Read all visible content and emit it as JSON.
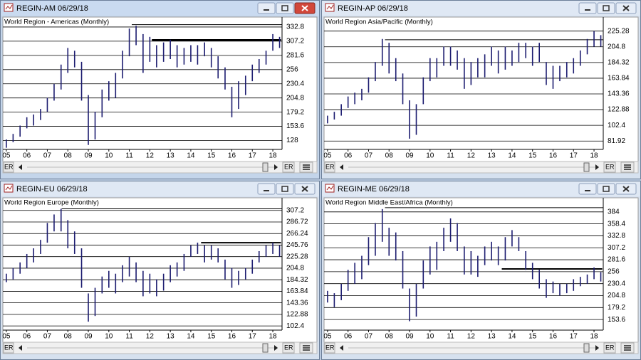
{
  "chart_data": [
    {
      "type": "hilo",
      "title": "REGIN-AM 06/29/18",
      "subtitle": "World Region - Americas (Monthly)",
      "scrollbar_label": "ER",
      "color": "#1c1c70",
      "active": true,
      "xlim": [
        2004.83,
        2018.45
      ],
      "ylim": [
        112,
        343
      ],
      "xticks": [
        {
          "value": 2005,
          "label": "05"
        },
        {
          "value": 2006,
          "label": "06"
        },
        {
          "value": 2007,
          "label": "07"
        },
        {
          "value": 2008,
          "label": "08"
        },
        {
          "value": 2009,
          "label": "09"
        },
        {
          "value": 2010,
          "label": "10"
        },
        {
          "value": 2011,
          "label": "11"
        },
        {
          "value": 2012,
          "label": "12"
        },
        {
          "value": 2013,
          "label": "13"
        },
        {
          "value": 2014,
          "label": "14"
        },
        {
          "value": 2015,
          "label": "15"
        },
        {
          "value": 2016,
          "label": "16"
        },
        {
          "value": 2017,
          "label": "17"
        },
        {
          "value": 2018,
          "label": "18"
        }
      ],
      "yticks": [
        128,
        153.6,
        179.2,
        204.8,
        230.4,
        256,
        281.6,
        307.2,
        332.8
      ],
      "levels": [
        {
          "value": 337,
          "from": 2010.9,
          "to": 2018.45,
          "width": 1
        },
        {
          "value": 309,
          "from": 2012.1,
          "to": 2018.4,
          "width": 3
        }
      ],
      "x": [
        2005,
        2005.33,
        2005.67,
        2006,
        2006.33,
        2006.67,
        2007,
        2007.33,
        2007.67,
        2008,
        2008.33,
        2008.67,
        2009,
        2009.33,
        2009.67,
        2010,
        2010.33,
        2010.67,
        2011,
        2011.33,
        2011.67,
        2012,
        2012.33,
        2012.67,
        2013,
        2013.33,
        2013.67,
        2014,
        2014.33,
        2014.67,
        2015,
        2015.33,
        2015.67,
        2016,
        2016.33,
        2016.67,
        2017,
        2017.33,
        2017.67,
        2018,
        2018.33
      ],
      "high": [
        130,
        140,
        155,
        170,
        175,
        185,
        205,
        230,
        265,
        295,
        290,
        270,
        210,
        180,
        220,
        235,
        250,
        290,
        330,
        335,
        320,
        315,
        300,
        305,
        310,
        300,
        295,
        300,
        300,
        305,
        295,
        280,
        260,
        225,
        235,
        245,
        265,
        275,
        290,
        320,
        315
      ],
      "low": [
        115,
        125,
        135,
        150,
        155,
        165,
        180,
        200,
        220,
        250,
        260,
        200,
        120,
        130,
        170,
        200,
        205,
        240,
        280,
        300,
        250,
        270,
        260,
        270,
        275,
        260,
        265,
        270,
        265,
        280,
        260,
        240,
        220,
        170,
        185,
        210,
        235,
        250,
        265,
        290,
        295
      ]
    },
    {
      "type": "hilo",
      "title": "REGIN-AP 06/29/18",
      "subtitle": "World Region Asia/Pacific (Monthly)",
      "scrollbar_label": "ER",
      "color": "#1c1c70",
      "active": false,
      "xlim": [
        2004.83,
        2018.45
      ],
      "ylim": [
        71,
        238
      ],
      "xticks": [
        {
          "value": 2005,
          "label": "05"
        },
        {
          "value": 2006,
          "label": "06"
        },
        {
          "value": 2007,
          "label": "07"
        },
        {
          "value": 2008,
          "label": "08"
        },
        {
          "value": 2009,
          "label": "09"
        },
        {
          "value": 2010,
          "label": "10"
        },
        {
          "value": 2011,
          "label": "11"
        },
        {
          "value": 2012,
          "label": "12"
        },
        {
          "value": 2013,
          "label": "13"
        },
        {
          "value": 2014,
          "label": "14"
        },
        {
          "value": 2015,
          "label": "15"
        },
        {
          "value": 2016,
          "label": "16"
        },
        {
          "value": 2017,
          "label": "17"
        },
        {
          "value": 2018,
          "label": "18"
        }
      ],
      "yticks": [
        81.92,
        102.4,
        122.88,
        143.36,
        163.84,
        184.32,
        204.8,
        225.28
      ],
      "levels": [
        {
          "value": 214,
          "from": 2007.8,
          "to": 2018.45,
          "width": 1
        }
      ],
      "x": [
        2005,
        2005.33,
        2005.67,
        2006,
        2006.33,
        2006.67,
        2007,
        2007.33,
        2007.67,
        2008,
        2008.33,
        2008.67,
        2009,
        2009.33,
        2009.67,
        2010,
        2010.33,
        2010.67,
        2011,
        2011.33,
        2011.67,
        2012,
        2012.33,
        2012.67,
        2013,
        2013.33,
        2013.67,
        2014,
        2014.33,
        2014.67,
        2015,
        2015.33,
        2015.67,
        2016,
        2016.33,
        2016.67,
        2017,
        2017.33,
        2017.67,
        2018,
        2018.33
      ],
      "high": [
        115,
        120,
        130,
        140,
        145,
        150,
        165,
        185,
        215,
        210,
        190,
        170,
        135,
        130,
        165,
        190,
        190,
        205,
        205,
        200,
        190,
        185,
        190,
        195,
        205,
        200,
        205,
        200,
        210,
        210,
        205,
        210,
        185,
        180,
        180,
        185,
        190,
        200,
        215,
        225,
        220
      ],
      "low": [
        105,
        110,
        115,
        125,
        130,
        135,
        145,
        160,
        180,
        170,
        160,
        130,
        85,
        90,
        130,
        160,
        165,
        180,
        180,
        175,
        150,
        155,
        165,
        165,
        180,
        170,
        175,
        180,
        185,
        190,
        180,
        185,
        155,
        150,
        160,
        165,
        170,
        180,
        195,
        205,
        205
      ]
    },
    {
      "type": "hilo",
      "title": "REGIN-EU 06/29/18",
      "subtitle": "World Region Europe (Monthly)",
      "scrollbar_label": "ER",
      "color": "#1c1c70",
      "active": false,
      "xlim": [
        2004.83,
        2018.45
      ],
      "ylim": [
        95,
        322
      ],
      "xticks": [
        {
          "value": 2005,
          "label": "05"
        },
        {
          "value": 2006,
          "label": "06"
        },
        {
          "value": 2007,
          "label": "07"
        },
        {
          "value": 2008,
          "label": "08"
        },
        {
          "value": 2009,
          "label": "09"
        },
        {
          "value": 2010,
          "label": "10"
        },
        {
          "value": 2011,
          "label": "11"
        },
        {
          "value": 2012,
          "label": "12"
        },
        {
          "value": 2013,
          "label": "13"
        },
        {
          "value": 2014,
          "label": "14"
        },
        {
          "value": 2015,
          "label": "15"
        },
        {
          "value": 2016,
          "label": "16"
        },
        {
          "value": 2017,
          "label": "17"
        },
        {
          "value": 2018,
          "label": "18"
        }
      ],
      "yticks": [
        102.4,
        122.88,
        143.36,
        163.84,
        184.32,
        204.8,
        225.28,
        245.76,
        266.24,
        286.72,
        307.2
      ],
      "levels": [
        {
          "value": 310,
          "from": 2007.7,
          "to": 2018.45,
          "width": 1
        },
        {
          "value": 250,
          "from": 2014.5,
          "to": 2018.4,
          "width": 2
        }
      ],
      "x": [
        2005,
        2005.33,
        2005.67,
        2006,
        2006.33,
        2006.67,
        2007,
        2007.33,
        2007.67,
        2008,
        2008.33,
        2008.67,
        2009,
        2009.33,
        2009.67,
        2010,
        2010.33,
        2010.67,
        2011,
        2011.33,
        2011.67,
        2012,
        2012.33,
        2012.67,
        2013,
        2013.33,
        2013.67,
        2014,
        2014.33,
        2014.67,
        2015,
        2015.33,
        2015.67,
        2016,
        2016.33,
        2016.67,
        2017,
        2017.33,
        2017.67,
        2018,
        2018.33
      ],
      "high": [
        195,
        205,
        215,
        230,
        240,
        255,
        285,
        300,
        310,
        290,
        270,
        240,
        160,
        170,
        190,
        200,
        195,
        210,
        225,
        215,
        200,
        195,
        185,
        195,
        210,
        215,
        230,
        245,
        250,
        245,
        245,
        240,
        220,
        205,
        200,
        205,
        220,
        235,
        245,
        250,
        245
      ],
      "low": [
        180,
        185,
        195,
        205,
        215,
        230,
        250,
        270,
        270,
        240,
        230,
        170,
        110,
        120,
        160,
        170,
        160,
        180,
        190,
        180,
        155,
        160,
        155,
        165,
        180,
        190,
        200,
        225,
        230,
        215,
        220,
        215,
        185,
        170,
        175,
        185,
        195,
        215,
        225,
        230,
        225
      ]
    },
    {
      "type": "hilo",
      "title": "REGIN-ME 06/29/18",
      "subtitle": "World Region Middle East/Africa (Monthly)",
      "scrollbar_label": "ER",
      "color": "#1c1c70",
      "active": false,
      "xlim": [
        2004.83,
        2018.45
      ],
      "ylim": [
        131,
        405
      ],
      "xticks": [
        {
          "value": 2005,
          "label": "05"
        },
        {
          "value": 2006,
          "label": "06"
        },
        {
          "value": 2007,
          "label": "07"
        },
        {
          "value": 2008,
          "label": "08"
        },
        {
          "value": 2009,
          "label": "09"
        },
        {
          "value": 2010,
          "label": "10"
        },
        {
          "value": 2011,
          "label": "11"
        },
        {
          "value": 2012,
          "label": "12"
        },
        {
          "value": 2013,
          "label": "13"
        },
        {
          "value": 2014,
          "label": "14"
        },
        {
          "value": 2015,
          "label": "15"
        },
        {
          "value": 2016,
          "label": "16"
        },
        {
          "value": 2017,
          "label": "17"
        },
        {
          "value": 2018,
          "label": "18"
        }
      ],
      "yticks": [
        153.6,
        179.2,
        204.8,
        230.4,
        256,
        281.6,
        307.2,
        332.8,
        358.4,
        384
      ],
      "levels": [
        {
          "value": 393,
          "from": 2007.8,
          "to": 2018.45,
          "width": 1
        },
        {
          "value": 262,
          "from": 2013.5,
          "to": 2018.4,
          "width": 2
        }
      ],
      "x": [
        2005,
        2005.33,
        2005.67,
        2006,
        2006.33,
        2006.67,
        2007,
        2007.33,
        2007.67,
        2008,
        2008.33,
        2008.67,
        2009,
        2009.33,
        2009.67,
        2010,
        2010.33,
        2010.67,
        2011,
        2011.33,
        2011.67,
        2012,
        2012.33,
        2012.67,
        2013,
        2013.33,
        2013.67,
        2014,
        2014.33,
        2014.67,
        2015,
        2015.33,
        2015.67,
        2016,
        2016.33,
        2016.67,
        2017,
        2017.33,
        2017.67,
        2018,
        2018.33
      ],
      "high": [
        215,
        210,
        230,
        260,
        275,
        290,
        330,
        360,
        390,
        350,
        340,
        300,
        220,
        230,
        280,
        310,
        320,
        350,
        370,
        360,
        310,
        300,
        290,
        310,
        320,
        310,
        330,
        345,
        330,
        300,
        275,
        260,
        240,
        235,
        230,
        230,
        240,
        245,
        250,
        265,
        255
      ],
      "low": [
        190,
        180,
        195,
        215,
        230,
        240,
        270,
        290,
        320,
        290,
        280,
        220,
        150,
        160,
        220,
        250,
        260,
        300,
        320,
        300,
        250,
        250,
        245,
        270,
        280,
        270,
        280,
        310,
        300,
        260,
        240,
        220,
        200,
        210,
        205,
        210,
        215,
        225,
        230,
        240,
        235
      ]
    }
  ]
}
